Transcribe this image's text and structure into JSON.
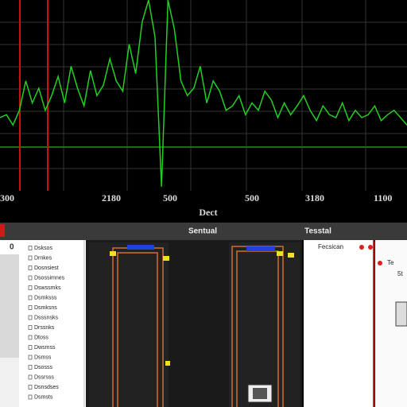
{
  "spectrum": {
    "values": [
      20,
      22,
      15,
      25,
      45,
      30,
      40,
      25,
      35,
      48,
      30,
      55,
      40,
      28,
      52,
      35,
      42,
      60,
      45,
      38,
      70,
      50,
      85,
      100,
      75,
      -27,
      100,
      80,
      45,
      35,
      40,
      55,
      30,
      45,
      38,
      25,
      28,
      35,
      22,
      30,
      25,
      38,
      32,
      20,
      30,
      22,
      28,
      35,
      25,
      18,
      28,
      22,
      20,
      30,
      18,
      25,
      20,
      22,
      28,
      18,
      22,
      25,
      20,
      15
    ],
    "x_labels": [
      "300",
      "2180",
      "500",
      "500",
      "3180",
      "1100"
    ],
    "axis_label": "Dect"
  },
  "toolbar": {
    "center": "Sentual",
    "right": "Tesstal"
  },
  "left_panel": {
    "header": "0",
    "items": [
      "Dsksos",
      "Drnkes",
      "Dosnsiest",
      "Dsossimnes",
      "Dswssmks",
      "Dsmksss",
      "Dsmksns",
      "Dsssnsks",
      "Drssnks",
      "Dtoss",
      "Dwsmss",
      "Dsmss",
      "Dsosss",
      "Dssrsss",
      "Dsnsdses",
      "Dsmsts"
    ]
  },
  "right_panel": {
    "title": "Fecsican",
    "side_title": "Te",
    "side_label": "5t"
  }
}
